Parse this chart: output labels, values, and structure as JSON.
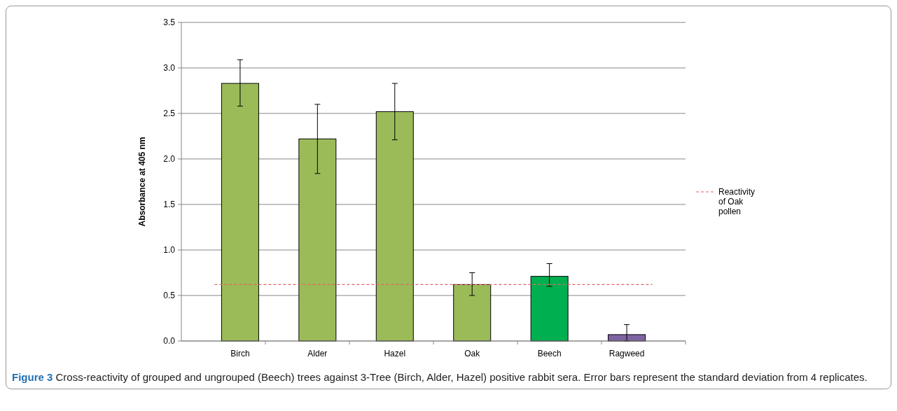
{
  "chart_data": {
    "type": "bar",
    "ylabel": "Absorbance at 405 nm",
    "categories": [
      "Birch",
      "Alder",
      "Hazel",
      "Oak",
      "Beech",
      "Ragweed"
    ],
    "values": [
      2.83,
      2.22,
      2.52,
      0.62,
      0.71,
      0.07
    ],
    "colors": [
      "#9bbb59",
      "#9bbb59",
      "#9bbb59",
      "#9bbb59",
      "#00b050",
      "#8064a2"
    ],
    "errors": [
      [
        2.58,
        3.09
      ],
      [
        1.84,
        2.6
      ],
      [
        2.21,
        2.83
      ],
      [
        0.5,
        0.75
      ],
      [
        0.6,
        0.85
      ],
      [
        0,
        0.18
      ]
    ],
    "ylim": [
      0,
      3.5
    ],
    "yticks": [
      {
        "value": 0,
        "label": "0.0"
      },
      {
        "value": 0.5,
        "label": "0.5"
      },
      {
        "value": 1,
        "label": "1.0"
      },
      {
        "value": 1.5,
        "label": "1.5"
      },
      {
        "value": 2,
        "label": "2.0"
      },
      {
        "value": 2.5,
        "label": "2.5"
      },
      {
        "value": 3,
        "label": "3.0"
      },
      {
        "value": 3.5,
        "label": "3.5"
      }
    ],
    "grid": "y",
    "legend": "right",
    "ref_lines": [
      {
        "axis": "y",
        "value": 0.62,
        "label": "Reactivity of Oak pollen",
        "color": "#e06666",
        "line_style": "dashed"
      }
    ],
    "annotations": [
      "Figure 3",
      "Cross-reactivity of grouped and ungrouped (Beech) trees against 3-Tree (Birch, Alder, Hazel) positive rabbit sera. Error bars represent the standard deviation from 4 replicates."
    ]
  }
}
